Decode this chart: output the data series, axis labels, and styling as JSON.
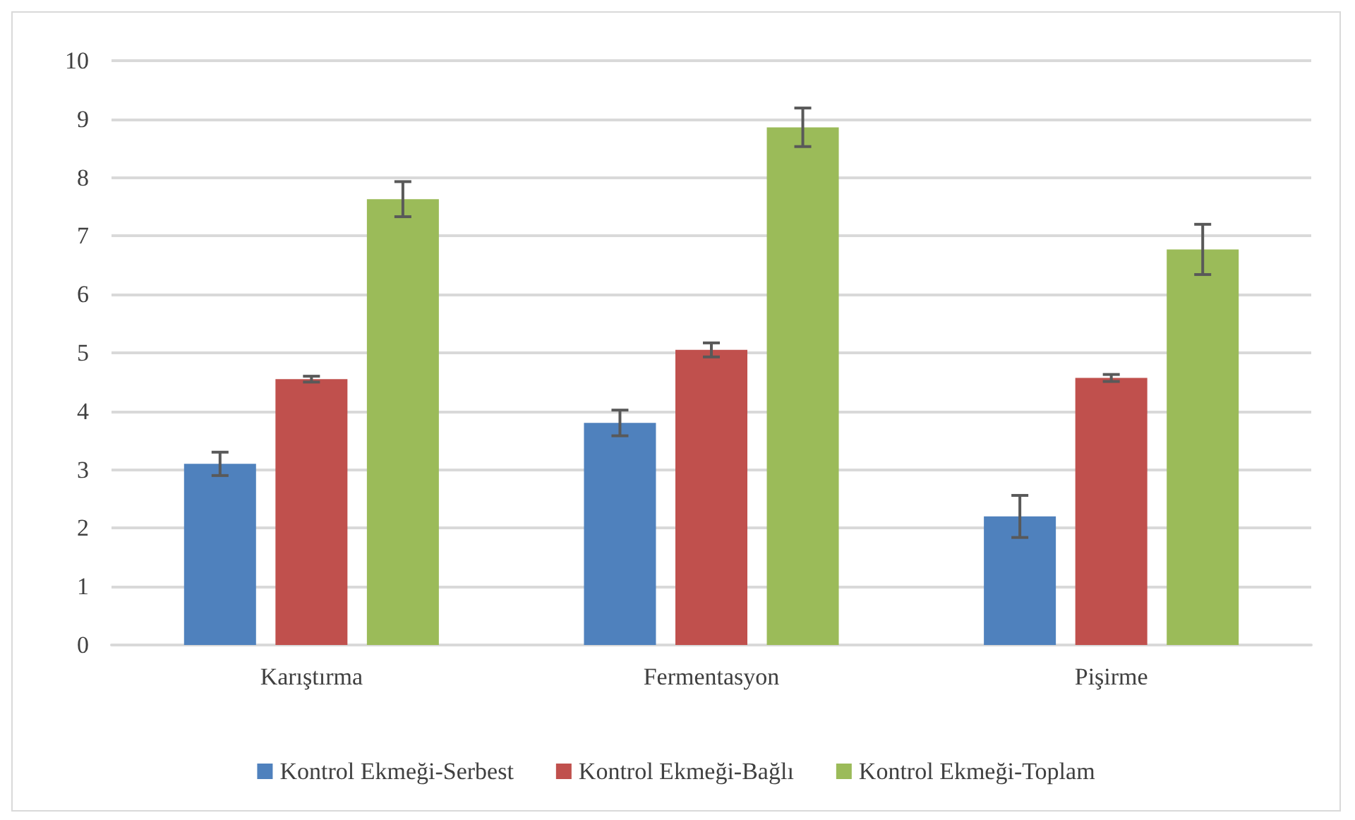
{
  "chart_data": {
    "type": "bar",
    "categories": [
      "Karıştırma",
      "Fermentasyon",
      "Pişirme"
    ],
    "series": [
      {
        "name": "Kontrol Ekmeği-Serbest",
        "color": "#4f81bd",
        "values": [
          3.1,
          3.8,
          2.2
        ],
        "errors": [
          0.2,
          0.22,
          0.36
        ]
      },
      {
        "name": "Kontrol Ekmeği-Bağlı",
        "color": "#c0504d",
        "values": [
          4.55,
          5.05,
          4.57
        ],
        "errors": [
          0.05,
          0.12,
          0.06
        ]
      },
      {
        "name": "Kontrol Ekmeği-Toplam",
        "color": "#9bbb59",
        "values": [
          7.63,
          8.86,
          6.77
        ],
        "errors": [
          0.3,
          0.33,
          0.43
        ]
      }
    ],
    "ylim": [
      0,
      10
    ],
    "yticks": [
      0,
      1,
      2,
      3,
      4,
      5,
      6,
      7,
      8,
      9,
      10
    ],
    "grid": "y",
    "legend": "bottom"
  }
}
